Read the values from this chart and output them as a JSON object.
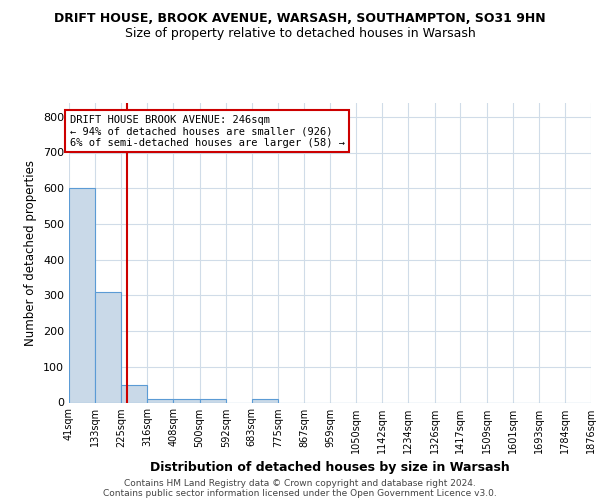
{
  "title1": "DRIFT HOUSE, BROOK AVENUE, WARSASH, SOUTHAMPTON, SO31 9HN",
  "title2": "Size of property relative to detached houses in Warsash",
  "xlabel": "Distribution of detached houses by size in Warsash",
  "ylabel": "Number of detached properties",
  "bin_edges": [
    41,
    133,
    225,
    316,
    408,
    500,
    592,
    683,
    775,
    867,
    959,
    1050,
    1142,
    1234,
    1326,
    1417,
    1509,
    1601,
    1693,
    1784,
    1876
  ],
  "bar_heights": [
    600,
    310,
    50,
    10,
    10,
    10,
    0,
    10,
    0,
    0,
    0,
    0,
    0,
    0,
    0,
    0,
    0,
    0,
    0,
    0
  ],
  "bar_color": "#c9d9e8",
  "bar_edge_color": "#5b9bd5",
  "red_line_x": 246,
  "red_line_color": "#cc0000",
  "annotation_line1": "DRIFT HOUSE BROOK AVENUE: 246sqm",
  "annotation_line2": "← 94% of detached houses are smaller (926)",
  "annotation_line3": "6% of semi-detached houses are larger (58) →",
  "annotation_box_color": "#ffffff",
  "annotation_box_edge": "#cc0000",
  "ylim": [
    0,
    840
  ],
  "yticks": [
    0,
    100,
    200,
    300,
    400,
    500,
    600,
    700,
    800
  ],
  "footer1": "Contains HM Land Registry data © Crown copyright and database right 2024.",
  "footer2": "Contains public sector information licensed under the Open Government Licence v3.0.",
  "background_color": "#ffffff",
  "grid_color": "#d0dce8"
}
